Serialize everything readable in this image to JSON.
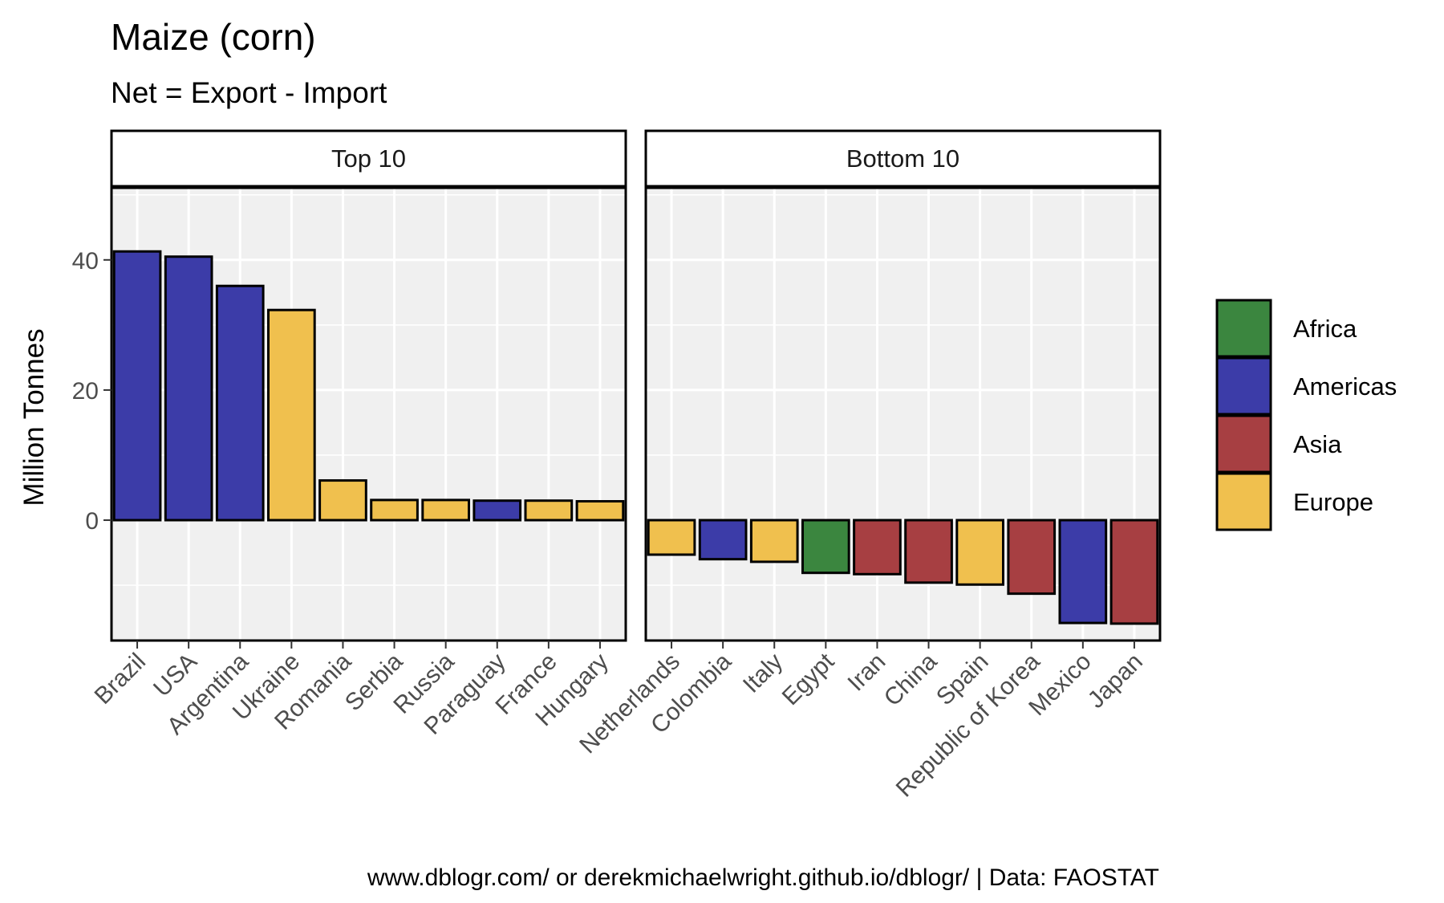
{
  "chart_data": {
    "type": "bar",
    "title": "Maize (corn)",
    "subtitle": "Net = Export - Import",
    "ylabel": "Million Tonnes",
    "xlabel": "",
    "ylim": [
      -18.5,
      51.2
    ],
    "yticks": [
      0,
      20,
      40
    ],
    "grid": true,
    "legend_position": "right",
    "caption": "www.dblogr.com/ or derekmichaelwright.github.io/dblogr/ | Data: FAOSTAT",
    "region_colors": {
      "Africa": "#3B863F",
      "Americas": "#3C3CA8",
      "Asia": "#A73F42",
      "Europe": "#F0C04E"
    },
    "legend": [
      "Africa",
      "Americas",
      "Asia",
      "Europe"
    ],
    "panels": [
      {
        "label": "Top 10",
        "categories": [
          "Brazil",
          "USA",
          "Argentina",
          "Ukraine",
          "Romania",
          "Serbia",
          "Russia",
          "Paraguay",
          "France",
          "Hungary"
        ],
        "values": [
          41.3,
          40.5,
          36.0,
          32.3,
          6.1,
          3.1,
          3.1,
          3.0,
          3.0,
          2.9
        ],
        "regions": [
          "Americas",
          "Americas",
          "Americas",
          "Europe",
          "Europe",
          "Europe",
          "Europe",
          "Americas",
          "Europe",
          "Europe"
        ]
      },
      {
        "label": "Bottom 10",
        "categories": [
          "Netherlands",
          "Colombia",
          "Italy",
          "Egypt",
          "Iran",
          "China",
          "Spain",
          "Republic of Korea",
          "Mexico",
          "Japan"
        ],
        "values": [
          -5.3,
          -6.0,
          -6.4,
          -8.1,
          -8.3,
          -9.6,
          -9.9,
          -11.3,
          -15.8,
          -15.9
        ],
        "regions": [
          "Europe",
          "Americas",
          "Europe",
          "Africa",
          "Asia",
          "Asia",
          "Europe",
          "Asia",
          "Americas",
          "Asia"
        ]
      }
    ]
  }
}
